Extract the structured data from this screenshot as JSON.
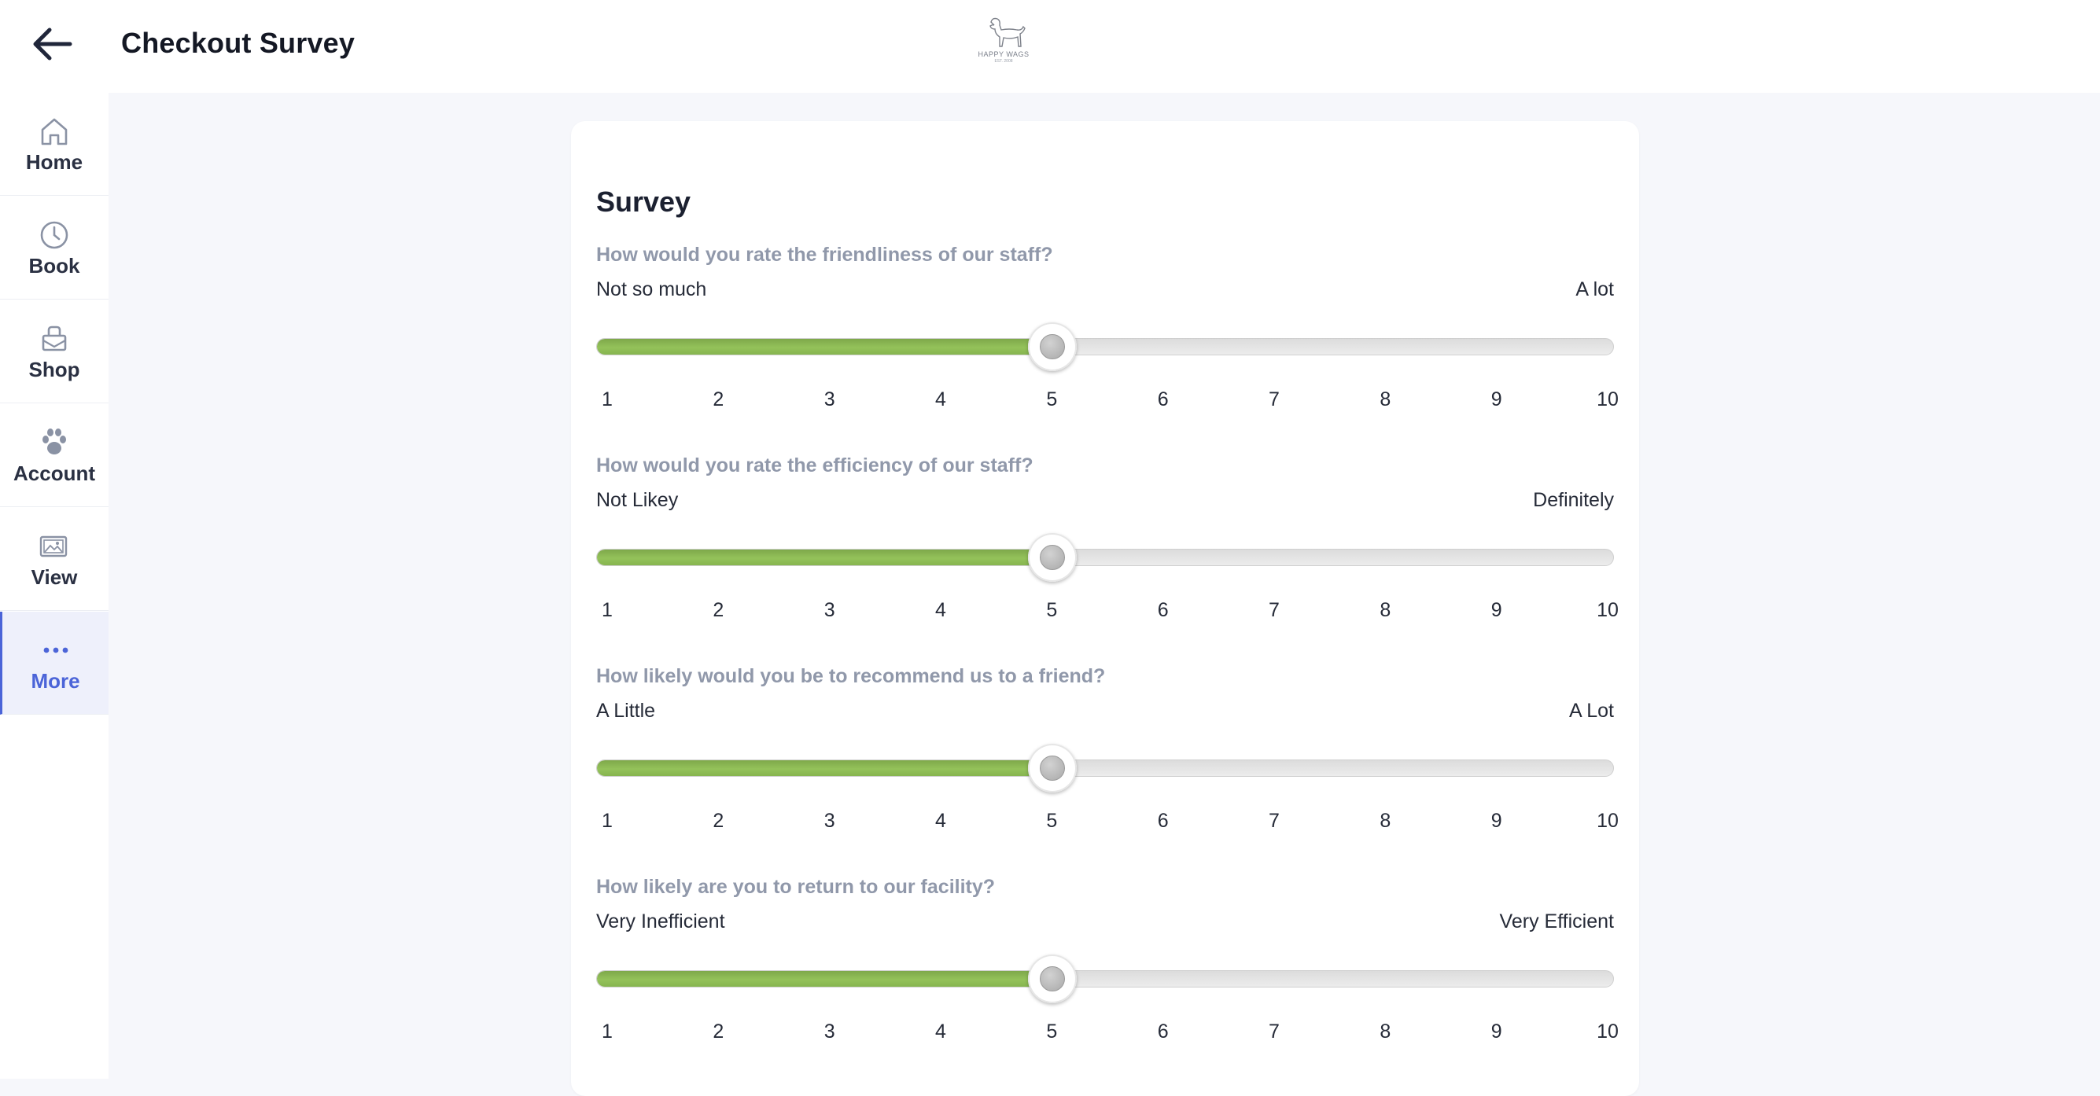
{
  "header": {
    "title": "Checkout Survey",
    "logo_text": "HAPPY WAGS",
    "logo_sub": "EST. 2008"
  },
  "sidebar": {
    "items": [
      {
        "label": "Home",
        "icon": "home-icon"
      },
      {
        "label": "Book",
        "icon": "clock-icon"
      },
      {
        "label": "Shop",
        "icon": "shopping-bag-icon"
      },
      {
        "label": "Account",
        "icon": "paw-icon"
      },
      {
        "label": "View",
        "icon": "image-gallery-icon"
      },
      {
        "label": "More",
        "icon": "more-dots-icon",
        "active": true
      }
    ]
  },
  "survey": {
    "title": "Survey",
    "min": 1,
    "max": 10,
    "scale": [
      "1",
      "2",
      "3",
      "4",
      "5",
      "6",
      "7",
      "8",
      "9",
      "10"
    ],
    "questions": [
      {
        "text": "How would you rate the friendliness of our staff?",
        "min_label": "Not so much",
        "max_label": "A lot",
        "value": 5
      },
      {
        "text": "How would you rate the efficiency of our staff?",
        "min_label": "Not Likey",
        "max_label": "Definitely",
        "value": 5
      },
      {
        "text": "How likely would you be to recommend us to a friend?",
        "min_label": "A Little",
        "max_label": "A Lot",
        "value": 5
      },
      {
        "text": "How likely are you to return to our facility?",
        "min_label": "Very Inefficient",
        "max_label": "Very Efficient",
        "value": 5
      }
    ]
  },
  "colors": {
    "accent": "#4b64d8",
    "slider_fill": "#8cbb55",
    "background": "#f6f7fb"
  }
}
